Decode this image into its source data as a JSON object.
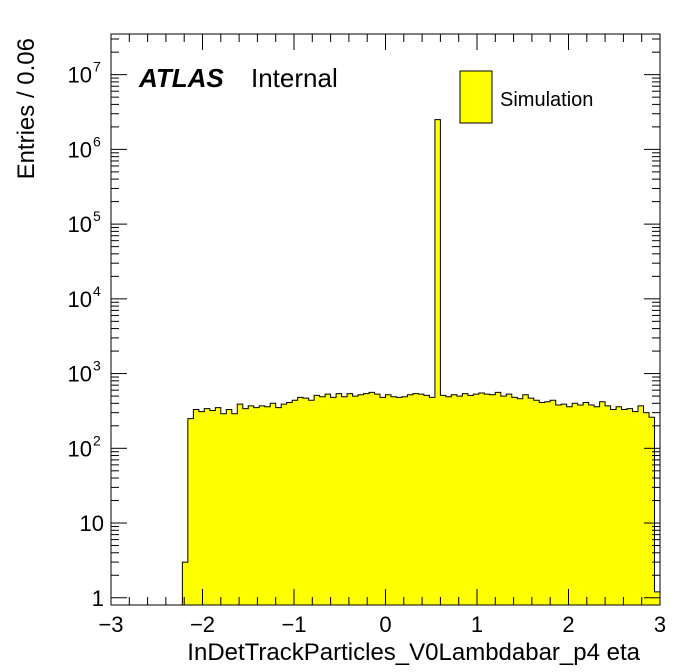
{
  "chart_data": {
    "type": "bar",
    "xlabel": "InDetTrackParticles_V0Lambdabar_p4 eta",
    "ylabel": "Entries / 0.06",
    "xlim": [
      -3,
      3
    ],
    "ylim": [
      0.8,
      35000000
    ],
    "log_y": true,
    "bin_width": 0.06,
    "x_start": -2.22,
    "x_ticks": [
      "−3",
      "−2",
      "−1",
      "0",
      "1",
      "2",
      "3"
    ],
    "x_tick_values": [
      -3,
      -2,
      -1,
      0,
      1,
      2,
      3
    ],
    "y_ticks": [
      {
        "value": 1,
        "base": "1",
        "exp": ""
      },
      {
        "value": 10,
        "base": "10",
        "exp": ""
      },
      {
        "value": 100,
        "base": "10",
        "exp": "2"
      },
      {
        "value": 1000,
        "base": "10",
        "exp": "3"
      },
      {
        "value": 10000,
        "base": "10",
        "exp": "4"
      },
      {
        "value": 100000,
        "base": "10",
        "exp": "5"
      },
      {
        "value": 1000000,
        "base": "10",
        "exp": "6"
      },
      {
        "value": 10000000,
        "base": "10",
        "exp": "7"
      }
    ],
    "values": [
      3,
      250,
      330,
      310,
      340,
      320,
      350,
      290,
      330,
      290,
      390,
      340,
      370,
      350,
      370,
      360,
      400,
      350,
      390,
      410,
      440,
      480,
      470,
      440,
      510,
      490,
      530,
      480,
      540,
      490,
      540,
      500,
      520,
      540,
      560,
      530,
      480,
      520,
      490,
      480,
      490,
      520,
      540,
      530,
      510,
      480,
      2500000,
      510,
      490,
      520,
      500,
      540,
      510,
      530,
      550,
      530,
      520,
      560,
      500,
      530,
      480,
      460,
      520,
      470,
      440,
      410,
      420,
      440,
      380,
      390,
      360,
      400,
      380,
      410,
      380,
      360,
      420,
      370,
      330,
      360,
      330,
      340,
      310,
      370,
      300,
      260,
      1.2
    ],
    "series": [
      {
        "name": "Simulation",
        "color": "#ffff00",
        "edge_color": "#000000"
      }
    ]
  },
  "branding": {
    "experiment": "ATLAS",
    "status": "Internal"
  },
  "legend": {
    "label": "Simulation",
    "placement": "top-right"
  }
}
